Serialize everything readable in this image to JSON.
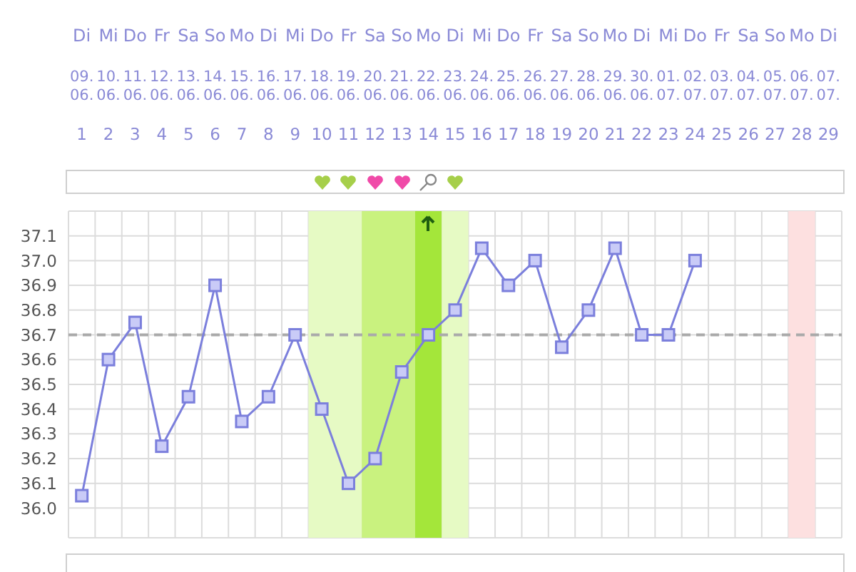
{
  "chart_data": {
    "type": "line",
    "marker": "square",
    "line_style": "solid",
    "grid": true,
    "categories": [
      "Di\n09.\n06.\n1",
      "Mi\n10.\n06.\n2",
      "Do\n11.\n06.\n3",
      "Fr\n12.\n06.\n4",
      "Sa\n13.\n06.\n5",
      "So\n14.\n06.\n6",
      "Mo\n15.\n06.\n7",
      "Di\n16.\n06.\n8",
      "Mi\n17.\n06.\n9",
      "Do\n18.\n06.\n10",
      "Fr\n19.\n06.\n11",
      "Sa\n20.\n06.\n12",
      "So\n21.\n06.\n13",
      "Mo\n22.\n06.\n14",
      "Di\n23.\n06.\n15",
      "Mi\n24.\n06.\n16",
      "Do\n25.\n06.\n17",
      "Fr\n26.\n06.\n18",
      "Sa\n27.\n06.\n19",
      "So\n28.\n06.\n20",
      "Mo\n29.\n06.\n21",
      "Di\n30.\n06.\n22",
      "Mi\n01.\n07.\n23",
      "Do\n02.\n07.\n24",
      "Fr\n03.\n07.\n25",
      "Sa\n04.\n07.\n26",
      "So\n05.\n07.\n27",
      "Mo\n06.\n07.\n28",
      "Di\n07.\n07.\n29"
    ],
    "series": [
      {
        "color": "#7b7fdc",
        "values": [
          36.05,
          36.6,
          36.75,
          36.25,
          36.45,
          36.9,
          36.35,
          36.45,
          36.7,
          36.4,
          36.1,
          36.2,
          36.55,
          36.7,
          36.8,
          37.05,
          36.9,
          37.0,
          36.65,
          36.8,
          37.05,
          36.7,
          36.7,
          37.0,
          null,
          null,
          null,
          null,
          null
        ]
      }
    ],
    "ylim": [
      35.88,
      37.2
    ],
    "yticks": [
      {
        "value": 36,
        "label": "36.0"
      },
      36.1,
      36.2,
      36.3,
      36.4,
      36.5,
      36.6,
      36.7,
      36.8,
      36.9,
      {
        "value": 37,
        "label": "37.0"
      },
      37.1
    ],
    "ref_lines": [
      {
        "axis": "y",
        "value": 36.7,
        "color": "#aaaaaa",
        "line_style": "dashed"
      }
    ],
    "bands": [
      {
        "axis": "x",
        "from": "Do\n18.\n06.\n10",
        "to": "Fr\n19.\n06.\n11",
        "color": "#e6fac4"
      },
      {
        "axis": "x",
        "from": "Sa\n20.\n06.\n12",
        "to": "So\n21.\n06.\n13",
        "color": "#c9f27f"
      },
      {
        "axis": "x",
        "from": "Mo\n22.\n06.\n14",
        "to": "Mo\n22.\n06.\n14",
        "color": "#a4e63a"
      },
      {
        "axis": "x",
        "from": "Di\n23.\n06.\n15",
        "to": "Di\n23.\n06.\n15",
        "color": "#e6fac4"
      },
      {
        "axis": "x",
        "from": "Mo\n06.\n07.\n28",
        "to": "Mo\n06.\n07.\n28",
        "color": "#fde0e0"
      }
    ]
  }
}
